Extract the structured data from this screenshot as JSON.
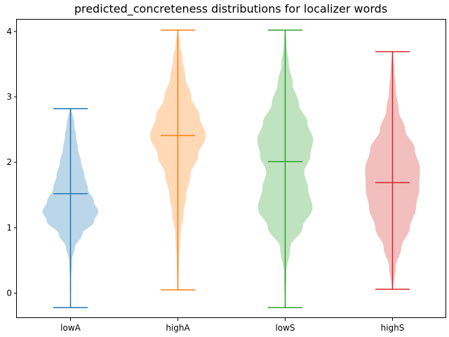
{
  "chart_data": {
    "type": "violin",
    "title": "predicted_concreteness distributions for localizer words",
    "xlabel": "",
    "ylabel": "",
    "categories": [
      "lowA",
      "highA",
      "lowS",
      "highS"
    ],
    "ylim": [
      -0.38,
      4.18
    ],
    "yticks": [
      0,
      1,
      2,
      3,
      4
    ],
    "grid": false,
    "colors": [
      "#1f77b4",
      "#ff7f0e",
      "#2ca02c",
      "#d62728"
    ],
    "series": [
      {
        "min": -0.22,
        "max": 2.82,
        "mean": 1.52,
        "density": [
          [
            -0.22,
            0.01
          ],
          [
            0.2,
            0.02
          ],
          [
            0.5,
            0.05
          ],
          [
            0.7,
            0.16
          ],
          [
            0.9,
            0.42
          ],
          [
            1.1,
            0.85
          ],
          [
            1.25,
            1.0
          ],
          [
            1.4,
            0.84
          ],
          [
            1.6,
            0.62
          ],
          [
            1.8,
            0.5
          ],
          [
            2.0,
            0.38
          ],
          [
            2.2,
            0.27
          ],
          [
            2.4,
            0.2
          ],
          [
            2.6,
            0.13
          ],
          [
            2.82,
            0.03
          ]
        ]
      },
      {
        "min": 0.05,
        "max": 4.02,
        "mean": 2.41,
        "density": [
          [
            0.05,
            0.01
          ],
          [
            0.5,
            0.04
          ],
          [
            0.9,
            0.09
          ],
          [
            1.2,
            0.2
          ],
          [
            1.5,
            0.3
          ],
          [
            1.8,
            0.45
          ],
          [
            2.1,
            0.72
          ],
          [
            2.4,
            1.0
          ],
          [
            2.7,
            0.78
          ],
          [
            3.0,
            0.48
          ],
          [
            3.3,
            0.27
          ],
          [
            3.6,
            0.16
          ],
          [
            3.8,
            0.08
          ],
          [
            4.02,
            0.01
          ]
        ]
      },
      {
        "min": -0.22,
        "max": 4.02,
        "mean": 2.01,
        "density": [
          [
            -0.22,
            0.01
          ],
          [
            0.3,
            0.04
          ],
          [
            0.7,
            0.18
          ],
          [
            1.0,
            0.62
          ],
          [
            1.3,
            0.98
          ],
          [
            1.6,
            0.82
          ],
          [
            1.85,
            0.68
          ],
          [
            2.1,
            0.9
          ],
          [
            2.35,
            1.0
          ],
          [
            2.6,
            0.8
          ],
          [
            2.9,
            0.48
          ],
          [
            3.2,
            0.27
          ],
          [
            3.5,
            0.13
          ],
          [
            3.8,
            0.05
          ],
          [
            4.02,
            0.01
          ]
        ]
      },
      {
        "min": 0.06,
        "max": 3.69,
        "mean": 1.69,
        "density": [
          [
            0.06,
            0.02
          ],
          [
            0.4,
            0.12
          ],
          [
            0.7,
            0.32
          ],
          [
            1.0,
            0.62
          ],
          [
            1.3,
            0.84
          ],
          [
            1.6,
            0.96
          ],
          [
            1.9,
            0.98
          ],
          [
            2.2,
            0.8
          ],
          [
            2.5,
            0.45
          ],
          [
            2.8,
            0.22
          ],
          [
            3.1,
            0.12
          ],
          [
            3.4,
            0.07
          ],
          [
            3.69,
            0.02
          ]
        ]
      }
    ]
  }
}
